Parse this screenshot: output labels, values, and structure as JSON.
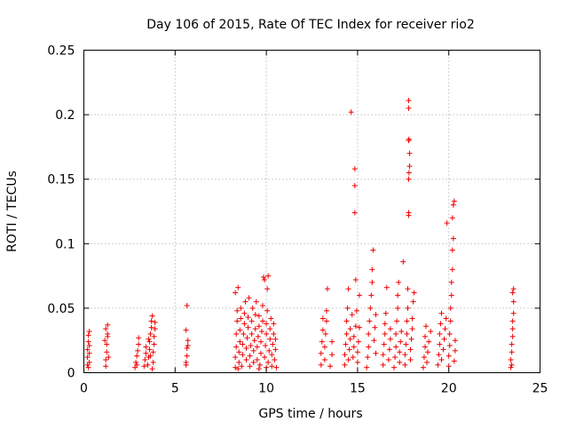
{
  "chart_data": {
    "type": "scatter",
    "title": "Day 106 of 2015, Rate Of TEC Index for receiver rio2",
    "xlabel": "GPS time / hours",
    "ylabel": "ROTI / TECUs",
    "xlim": [
      0,
      25
    ],
    "ylim": [
      0,
      0.25
    ],
    "xticks": [
      0,
      5,
      10,
      15,
      20,
      25
    ],
    "xtick_labels": [
      "0",
      "5",
      "10",
      "15",
      "20",
      "25"
    ],
    "yticks": [
      0,
      0.05,
      0.1,
      0.15,
      0.2,
      0.25
    ],
    "ytick_labels": [
      "0",
      "0.05",
      "0.1",
      "0.15",
      "0.2",
      "0.25"
    ],
    "grid": true,
    "marker": "plus",
    "color": "#ee0000",
    "series": [
      {
        "name": "ROTI",
        "points": [
          [
            0.2,
            0.006
          ],
          [
            0.2,
            0.012
          ],
          [
            0.2,
            0.018
          ],
          [
            0.25,
            0.024
          ],
          [
            0.25,
            0.029
          ],
          [
            0.3,
            0.008
          ],
          [
            0.3,
            0.015
          ],
          [
            0.3,
            0.021
          ],
          [
            0.3,
            0.032
          ],
          [
            0.25,
            0.004
          ],
          [
            1.2,
            0.005
          ],
          [
            1.2,
            0.01
          ],
          [
            1.25,
            0.016
          ],
          [
            1.25,
            0.022
          ],
          [
            1.3,
            0.028
          ],
          [
            1.2,
            0.034
          ],
          [
            1.3,
            0.037
          ],
          [
            1.35,
            0.012
          ],
          [
            1.15,
            0.025
          ],
          [
            1.3,
            0.03
          ],
          [
            2.8,
            0.004
          ],
          [
            2.85,
            0.008
          ],
          [
            2.9,
            0.013
          ],
          [
            2.95,
            0.017
          ],
          [
            3.0,
            0.022
          ],
          [
            3.0,
            0.027
          ],
          [
            2.9,
            0.006
          ],
          [
            3.3,
            0.005
          ],
          [
            3.35,
            0.01
          ],
          [
            3.4,
            0.015
          ],
          [
            3.4,
            0.02
          ],
          [
            3.5,
            0.006
          ],
          [
            3.55,
            0.012
          ],
          [
            3.6,
            0.018
          ],
          [
            3.6,
            0.024
          ],
          [
            3.65,
            0.03
          ],
          [
            3.7,
            0.035
          ],
          [
            3.7,
            0.04
          ],
          [
            3.75,
            0.044
          ],
          [
            3.8,
            0.008
          ],
          [
            3.8,
            0.016
          ],
          [
            3.85,
            0.022
          ],
          [
            3.85,
            0.028
          ],
          [
            3.9,
            0.034
          ],
          [
            3.9,
            0.039
          ],
          [
            3.75,
            0.003
          ],
          [
            3.65,
            0.013
          ],
          [
            3.55,
            0.026
          ],
          [
            5.6,
            0.006
          ],
          [
            5.6,
            0.008
          ],
          [
            5.65,
            0.013
          ],
          [
            5.65,
            0.019
          ],
          [
            5.7,
            0.025
          ],
          [
            5.6,
            0.033
          ],
          [
            5.65,
            0.052
          ],
          [
            5.7,
            0.021
          ],
          [
            8.3,
            0.004
          ],
          [
            8.3,
            0.012
          ],
          [
            8.35,
            0.02
          ],
          [
            8.35,
            0.03
          ],
          [
            8.4,
            0.04
          ],
          [
            8.4,
            0.048
          ],
          [
            8.3,
            0.062
          ],
          [
            8.45,
            0.066
          ],
          [
            8.5,
            0.008
          ],
          [
            8.5,
            0.016
          ],
          [
            8.55,
            0.024
          ],
          [
            8.55,
            0.033
          ],
          [
            8.6,
            0.042
          ],
          [
            8.6,
            0.05
          ],
          [
            8.65,
            0.005
          ],
          [
            8.7,
            0.014
          ],
          [
            8.7,
            0.022
          ],
          [
            8.75,
            0.03
          ],
          [
            8.8,
            0.038
          ],
          [
            8.8,
            0.046
          ],
          [
            8.85,
            0.055
          ],
          [
            8.9,
            0.01
          ],
          [
            8.9,
            0.019
          ],
          [
            8.95,
            0.027
          ],
          [
            9.0,
            0.035
          ],
          [
            9.0,
            0.043
          ],
          [
            9.05,
            0.058
          ],
          [
            9.1,
            0.005
          ],
          [
            9.1,
            0.013
          ],
          [
            9.15,
            0.021
          ],
          [
            9.2,
            0.03
          ],
          [
            9.2,
            0.04
          ],
          [
            9.25,
            0.05
          ],
          [
            9.3,
            0.008
          ],
          [
            9.3,
            0.017
          ],
          [
            9.35,
            0.025
          ],
          [
            9.4,
            0.034
          ],
          [
            9.4,
            0.045
          ],
          [
            9.45,
            0.055
          ],
          [
            9.5,
            0.01
          ],
          [
            9.5,
            0.02
          ],
          [
            9.55,
            0.028
          ],
          [
            9.6,
            0.036
          ],
          [
            9.6,
            0.044
          ],
          [
            9.65,
            0.006
          ],
          [
            9.7,
            0.015
          ],
          [
            9.7,
            0.024
          ],
          [
            9.75,
            0.032
          ],
          [
            9.8,
            0.04
          ],
          [
            9.8,
            0.052
          ],
          [
            9.85,
            0.074
          ],
          [
            9.9,
            0.072
          ],
          [
            9.9,
            0.012
          ],
          [
            9.95,
            0.021
          ],
          [
            10.0,
            0.03
          ],
          [
            10.0,
            0.038
          ],
          [
            10.05,
            0.048
          ],
          [
            10.05,
            0.065
          ],
          [
            10.1,
            0.075
          ],
          [
            10.1,
            0.008
          ],
          [
            10.15,
            0.017
          ],
          [
            10.2,
            0.026
          ],
          [
            10.2,
            0.034
          ],
          [
            10.25,
            0.042
          ],
          [
            10.3,
            0.005
          ],
          [
            10.3,
            0.014
          ],
          [
            10.35,
            0.022
          ],
          [
            10.4,
            0.03
          ],
          [
            10.4,
            0.038
          ],
          [
            10.45,
            0.01
          ],
          [
            10.5,
            0.018
          ],
          [
            10.5,
            0.026
          ],
          [
            10.55,
            0.004
          ],
          [
            8.45,
            0.003
          ],
          [
            9.6,
            0.003
          ],
          [
            10.0,
            0.004
          ],
          [
            13.0,
            0.006
          ],
          [
            13.0,
            0.015
          ],
          [
            13.05,
            0.024
          ],
          [
            13.1,
            0.033
          ],
          [
            13.1,
            0.042
          ],
          [
            13.2,
            0.01
          ],
          [
            13.2,
            0.02
          ],
          [
            13.25,
            0.03
          ],
          [
            13.3,
            0.04
          ],
          [
            13.3,
            0.048
          ],
          [
            13.35,
            0.065
          ],
          [
            13.5,
            0.005
          ],
          [
            13.6,
            0.014
          ],
          [
            13.6,
            0.024
          ],
          [
            14.3,
            0.006
          ],
          [
            14.3,
            0.014
          ],
          [
            14.35,
            0.022
          ],
          [
            14.4,
            0.03
          ],
          [
            14.4,
            0.04
          ],
          [
            14.45,
            0.05
          ],
          [
            14.5,
            0.065
          ],
          [
            14.5,
            0.01
          ],
          [
            14.55,
            0.018
          ],
          [
            14.6,
            0.026
          ],
          [
            14.6,
            0.034
          ],
          [
            14.65,
            0.202
          ],
          [
            14.7,
            0.045
          ],
          [
            14.75,
            0.012
          ],
          [
            14.8,
            0.02
          ],
          [
            14.8,
            0.028
          ],
          [
            14.85,
            0.158
          ],
          [
            14.85,
            0.145
          ],
          [
            14.85,
            0.124
          ],
          [
            14.9,
            0.036
          ],
          [
            14.95,
            0.048
          ],
          [
            15.0,
            0.008
          ],
          [
            15.0,
            0.016
          ],
          [
            15.05,
            0.024
          ],
          [
            15.1,
            0.035
          ],
          [
            15.1,
            0.06
          ],
          [
            14.9,
            0.072
          ],
          [
            15.5,
            0.004
          ],
          [
            15.55,
            0.012
          ],
          [
            15.6,
            0.02
          ],
          [
            15.6,
            0.03
          ],
          [
            15.65,
            0.04
          ],
          [
            15.7,
            0.05
          ],
          [
            15.75,
            0.06
          ],
          [
            15.8,
            0.07
          ],
          [
            15.8,
            0.08
          ],
          [
            15.85,
            0.095
          ],
          [
            15.9,
            0.025
          ],
          [
            15.95,
            0.035
          ],
          [
            16.0,
            0.045
          ],
          [
            16.0,
            0.015
          ],
          [
            16.4,
            0.006
          ],
          [
            16.4,
            0.014
          ],
          [
            16.45,
            0.022
          ],
          [
            16.5,
            0.03
          ],
          [
            16.5,
            0.038
          ],
          [
            16.55,
            0.046
          ],
          [
            16.6,
            0.066
          ],
          [
            16.7,
            0.01
          ],
          [
            16.75,
            0.018
          ],
          [
            16.8,
            0.026
          ],
          [
            16.8,
            0.034
          ],
          [
            17.0,
            0.004
          ],
          [
            17.05,
            0.012
          ],
          [
            17.1,
            0.02
          ],
          [
            17.1,
            0.03
          ],
          [
            17.15,
            0.04
          ],
          [
            17.2,
            0.05
          ],
          [
            17.2,
            0.06
          ],
          [
            17.25,
            0.07
          ],
          [
            17.3,
            0.008
          ],
          [
            17.3,
            0.016
          ],
          [
            17.35,
            0.024
          ],
          [
            17.4,
            0.032
          ],
          [
            17.5,
            0.086
          ],
          [
            17.6,
            0.006
          ],
          [
            17.6,
            0.014
          ],
          [
            17.65,
            0.022
          ],
          [
            17.7,
            0.03
          ],
          [
            17.7,
            0.04
          ],
          [
            17.75,
            0.05
          ],
          [
            17.75,
            0.065
          ],
          [
            17.8,
            0.122
          ],
          [
            17.8,
            0.124
          ],
          [
            17.8,
            0.15
          ],
          [
            17.82,
            0.155
          ],
          [
            17.85,
            0.16
          ],
          [
            17.85,
            0.17
          ],
          [
            17.8,
            0.18
          ],
          [
            17.82,
            0.181
          ],
          [
            17.8,
            0.205
          ],
          [
            17.8,
            0.211
          ],
          [
            17.9,
            0.01
          ],
          [
            17.9,
            0.018
          ],
          [
            17.95,
            0.026
          ],
          [
            18.0,
            0.034
          ],
          [
            18.0,
            0.042
          ],
          [
            18.05,
            0.055
          ],
          [
            18.1,
            0.062
          ],
          [
            18.6,
            0.004
          ],
          [
            18.65,
            0.012
          ],
          [
            18.7,
            0.02
          ],
          [
            18.7,
            0.028
          ],
          [
            18.75,
            0.036
          ],
          [
            18.8,
            0.008
          ],
          [
            18.85,
            0.016
          ],
          [
            18.9,
            0.024
          ],
          [
            19.0,
            0.032
          ],
          [
            19.4,
            0.006
          ],
          [
            19.45,
            0.014
          ],
          [
            19.5,
            0.022
          ],
          [
            19.5,
            0.03
          ],
          [
            19.55,
            0.038
          ],
          [
            19.6,
            0.046
          ],
          [
            19.6,
            0.01
          ],
          [
            19.7,
            0.018
          ],
          [
            19.75,
            0.026
          ],
          [
            19.8,
            0.034
          ],
          [
            19.85,
            0.042
          ],
          [
            19.9,
            0.116
          ],
          [
            20.0,
            0.005
          ],
          [
            20.0,
            0.013
          ],
          [
            20.05,
            0.021
          ],
          [
            20.05,
            0.03
          ],
          [
            20.1,
            0.04
          ],
          [
            20.1,
            0.05
          ],
          [
            20.15,
            0.06
          ],
          [
            20.15,
            0.07
          ],
          [
            20.2,
            0.08
          ],
          [
            20.2,
            0.095
          ],
          [
            20.25,
            0.104
          ],
          [
            20.2,
            0.12
          ],
          [
            20.25,
            0.13
          ],
          [
            20.3,
            0.133
          ],
          [
            20.3,
            0.009
          ],
          [
            20.35,
            0.017
          ],
          [
            20.35,
            0.025
          ],
          [
            23.4,
            0.004
          ],
          [
            23.4,
            0.01
          ],
          [
            23.45,
            0.016
          ],
          [
            23.45,
            0.022
          ],
          [
            23.5,
            0.028
          ],
          [
            23.5,
            0.034
          ],
          [
            23.5,
            0.04
          ],
          [
            23.55,
            0.046
          ],
          [
            23.55,
            0.055
          ],
          [
            23.5,
            0.062
          ],
          [
            23.55,
            0.065
          ],
          [
            23.45,
            0.006
          ]
        ]
      }
    ]
  }
}
